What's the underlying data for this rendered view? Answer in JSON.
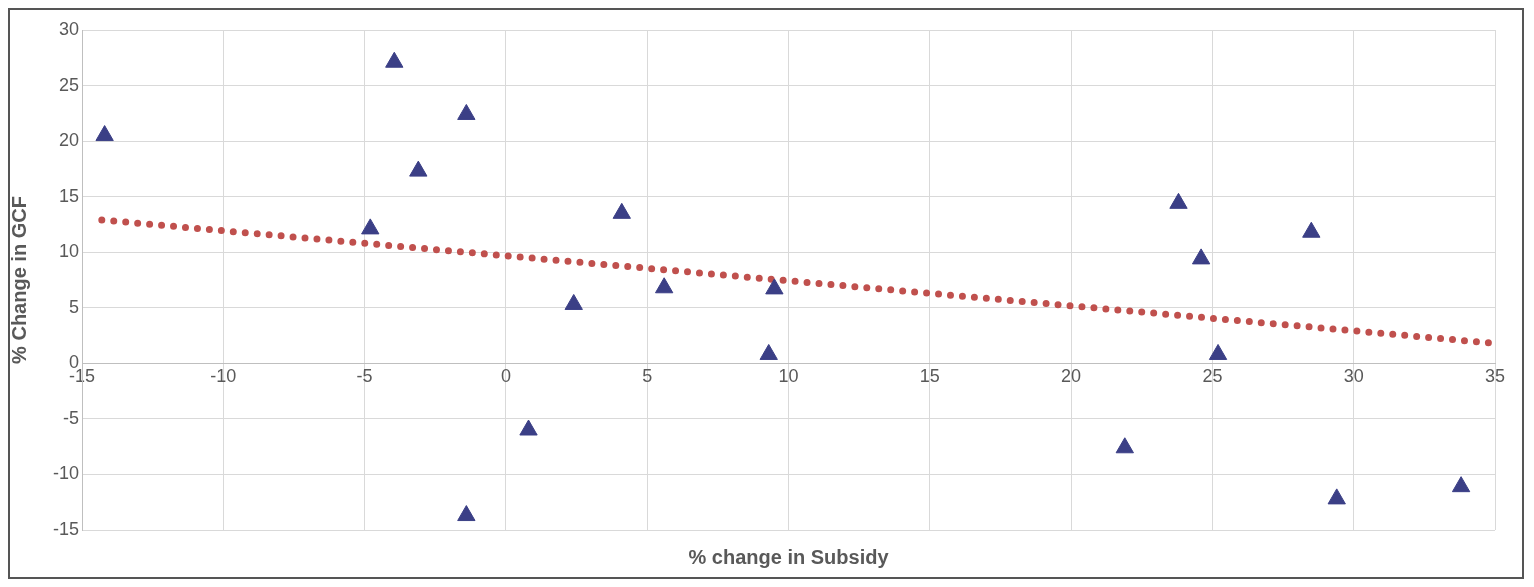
{
  "chart_data": {
    "type": "scatter",
    "xlabel": "% change in Subsidy",
    "ylabel": "% Change in GCF",
    "xlim": [
      -15,
      35
    ],
    "ylim": [
      -15,
      30
    ],
    "xticks": [
      -15,
      -10,
      -5,
      0,
      5,
      10,
      15,
      20,
      25,
      30,
      35
    ],
    "yticks": [
      -15,
      -10,
      -5,
      0,
      5,
      10,
      15,
      20,
      25,
      30
    ],
    "grid": true,
    "legend": false,
    "series": [
      {
        "type": "scatter",
        "color": "#3b3f86",
        "marker": "triangle",
        "x": [
          -14.2,
          -3.95,
          -1.4,
          -3.1,
          -4.8,
          -1.4,
          0.8,
          2.4,
          4.1,
          5.6,
          9.5,
          9.3,
          21.9,
          23.8,
          24.6,
          25.2,
          28.5,
          29.4,
          33.8
        ],
        "values": [
          20.5,
          27.1,
          22.4,
          17.3,
          12.1,
          -13.7,
          -6.0,
          5.3,
          13.5,
          6.8,
          6.7,
          0.8,
          -7.6,
          14.4,
          9.4,
          0.8,
          11.8,
          -12.2,
          -11.1
        ]
      },
      {
        "type": "line",
        "color": "#c0504d",
        "line_style": "dotted",
        "x": [
          -14.3,
          35
        ],
        "values": [
          12.9,
          1.8
        ]
      }
    ]
  }
}
